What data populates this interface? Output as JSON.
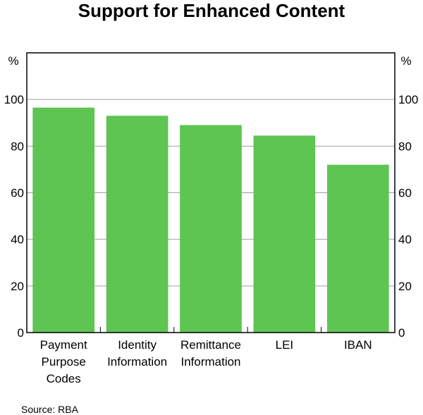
{
  "chart_data": {
    "type": "bar",
    "title": "Support for Enhanced Content",
    "unit_left": "%",
    "unit_right": "%",
    "categories": [
      [
        "Payment",
        "Purpose",
        "Codes"
      ],
      [
        "Identity",
        "Information"
      ],
      [
        "Remittance",
        "Information"
      ],
      [
        "LEI"
      ],
      [
        "IBAN"
      ]
    ],
    "values": [
      96.5,
      93,
      89,
      84.5,
      72
    ],
    "ylim": [
      0,
      120
    ],
    "yticks": [
      0,
      20,
      40,
      60,
      80,
      100
    ],
    "grid": true,
    "bar_color": "#5ec452",
    "grid_color": "#a0a0a0"
  },
  "source": "Source:  RBA"
}
